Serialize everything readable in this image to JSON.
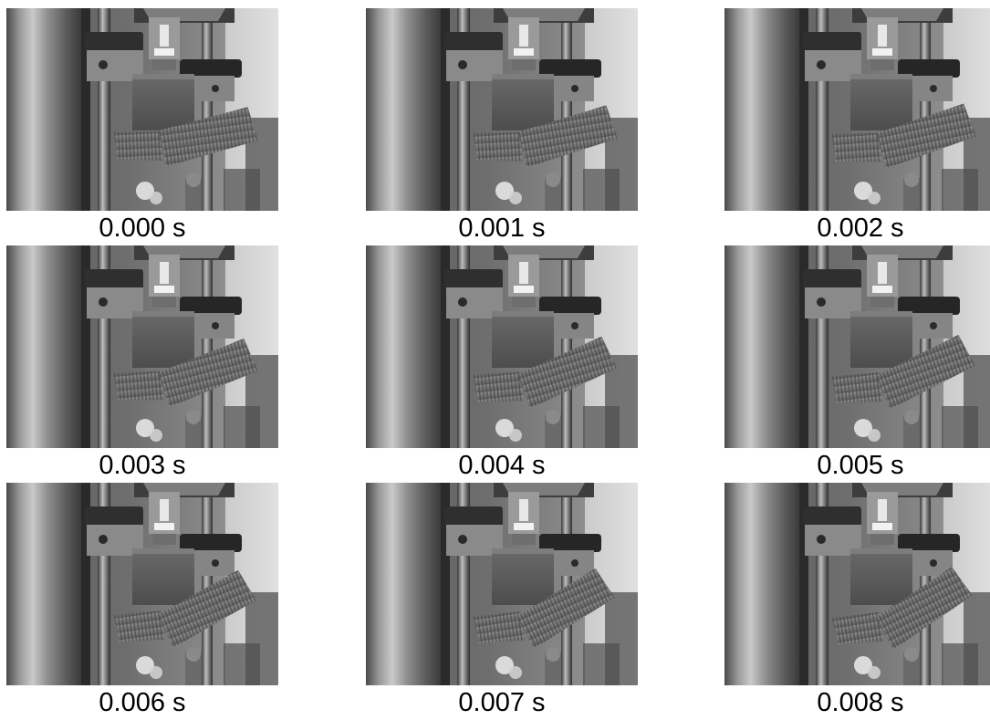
{
  "frames": [
    {
      "label": "0.000 s",
      "deflection": 0.0
    },
    {
      "label": "0.001 s",
      "deflection": 0.09
    },
    {
      "label": "0.002 s",
      "deflection": 0.18
    },
    {
      "label": "0.003 s",
      "deflection": 0.3
    },
    {
      "label": "0.004 s",
      "deflection": 0.42
    },
    {
      "label": "0.005 s",
      "deflection": 0.52
    },
    {
      "label": "0.006 s",
      "deflection": 0.64
    },
    {
      "label": "0.007 s",
      "deflection": 0.75
    },
    {
      "label": "0.008 s",
      "deflection": 0.85
    }
  ]
}
